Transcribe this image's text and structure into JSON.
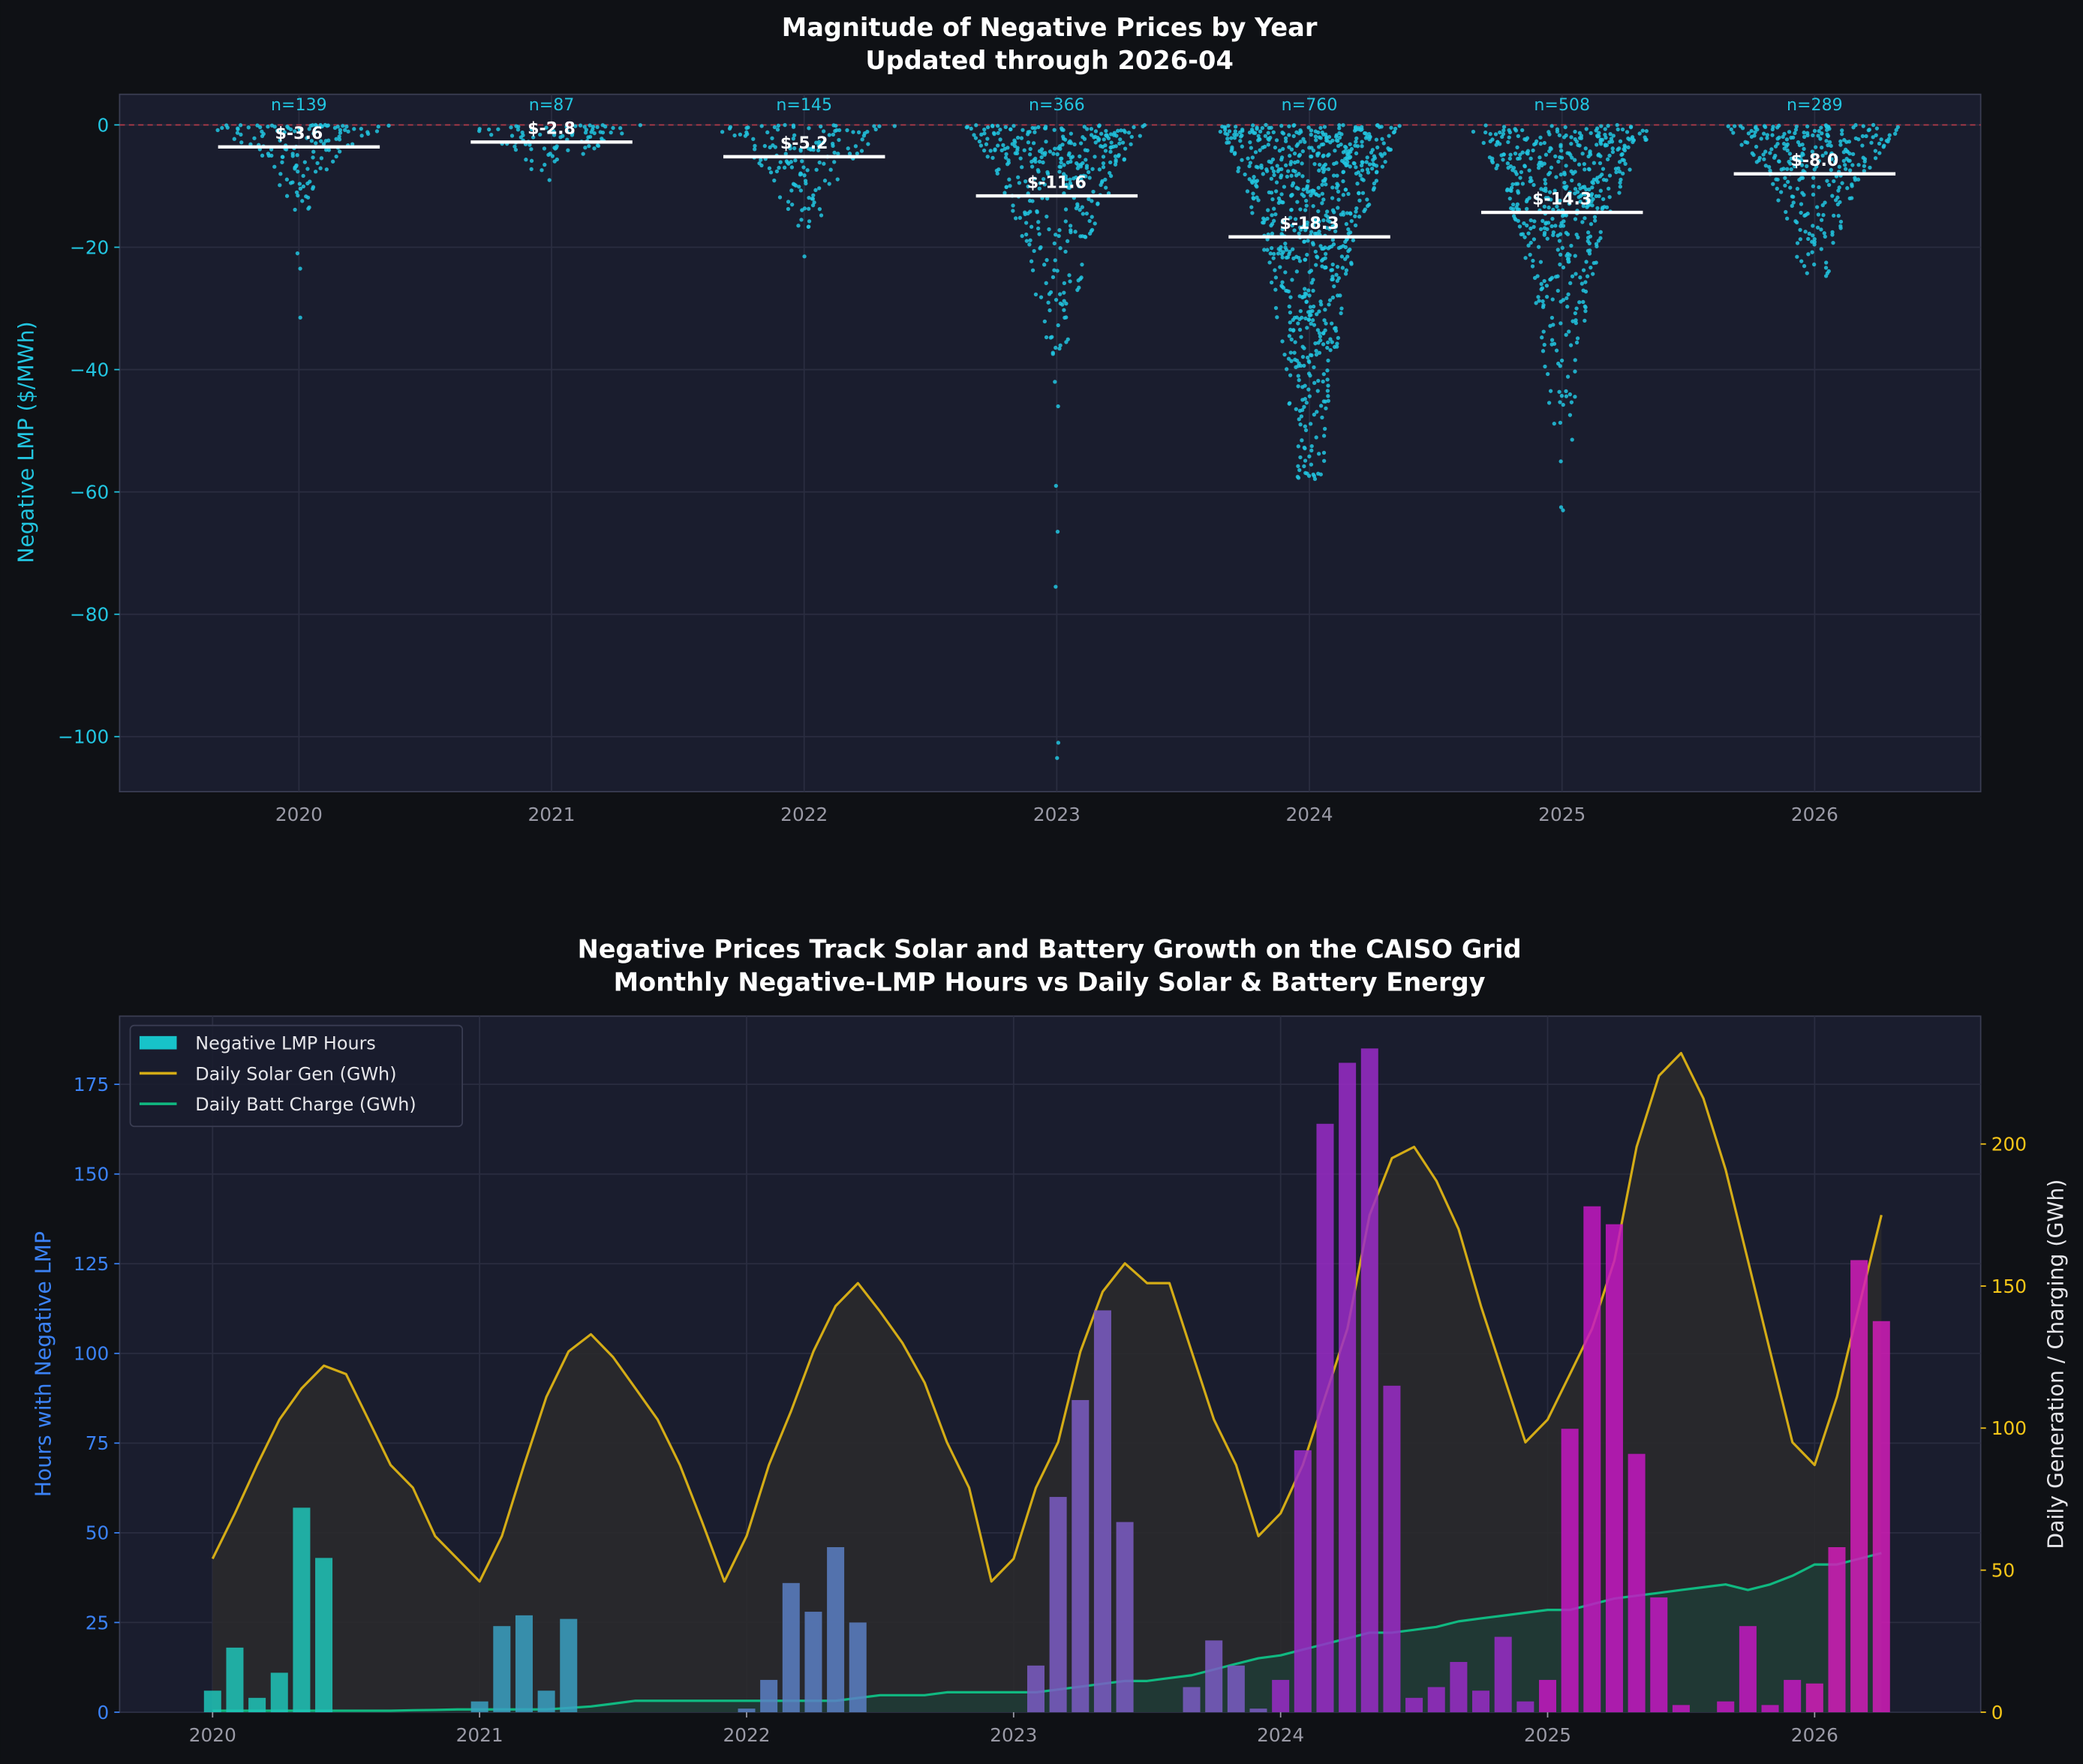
{
  "chart_data": [
    {
      "type": "scatter",
      "title": "Magnitude of Negative Prices by Year",
      "subtitle": "Updated through 2026-04",
      "xlabel": "",
      "ylabel": "Negative LMP ($/MWh)",
      "ylim": [
        -109,
        5
      ],
      "y_ticks": [
        "0",
        "−20",
        "−40",
        "−60",
        "−80",
        "−100"
      ],
      "y_tick_values": [
        0,
        -20,
        -40,
        -60,
        -80,
        -100
      ],
      "categories": [
        "2020",
        "2021",
        "2022",
        "2023",
        "2024",
        "2025",
        "2026"
      ],
      "counts": [
        139,
        87,
        145,
        366,
        760,
        508,
        289
      ],
      "count_labels": [
        "n=139",
        "n=87",
        "n=145",
        "n=366",
        "n=760",
        "n=508",
        "n=289"
      ],
      "means": [
        -3.6,
        -2.8,
        -5.2,
        -11.6,
        -18.3,
        -14.3,
        -8.0
      ],
      "mean_labels": [
        "$-3.6",
        "$-2.8",
        "$-5.2",
        "$-11.6",
        "$-18.3",
        "$-14.3",
        "$-8.0"
      ],
      "typical_min": [
        -14,
        -10.5,
        -17,
        -38,
        -58,
        -52,
        -25
      ],
      "outliers": [
        [
          -21,
          -23.5,
          -31.5
        ],
        [],
        [
          -21.5
        ],
        [
          -42,
          -46,
          -59,
          -66.5,
          -75.5,
          -101,
          -103.5
        ],
        [],
        [
          -55,
          -62.5,
          -63
        ],
        []
      ],
      "reference_line": 0,
      "grid": true,
      "colors": {
        "points": "#22c5e0",
        "mean_line": "#ffffff",
        "zero_line": "#b03a48"
      }
    },
    {
      "type": "bar+line",
      "title": "Negative Prices Track Solar and Battery Growth on the CAISO Grid",
      "subtitle": "Monthly Negative-LMP Hours vs Daily Solar & Battery Energy",
      "xlabel": "",
      "ylabel": "Hours with Negative LMP",
      "ylabel_right": "Daily Generation / Charging (GWh)",
      "x_ticks": [
        "2020",
        "2021",
        "2022",
        "2023",
        "2024",
        "2025",
        "2026"
      ],
      "ylim": [
        0,
        194
      ],
      "ylim_right": [
        0,
        245
      ],
      "y_ticks": [
        "0",
        "25",
        "50",
        "75",
        "100",
        "125",
        "150",
        "175"
      ],
      "y_ticks_right": [
        "0",
        "50",
        "100",
        "150",
        "200"
      ],
      "x_start": "2020-01",
      "x_end": "2026-04",
      "legend_position": "top-left",
      "grid": true,
      "series": [
        {
          "name": "Negative LMP Hours",
          "kind": "bar",
          "axis": "left",
          "values": [
            6,
            18,
            4,
            11,
            57,
            43,
            0,
            0,
            0,
            0,
            0,
            0,
            3,
            24,
            27,
            6,
            26,
            0,
            0,
            0,
            0,
            0,
            0,
            0,
            1,
            9,
            36,
            28,
            46,
            25,
            0,
            0,
            0,
            0,
            0,
            0,
            0,
            13,
            60,
            87,
            112,
            53,
            0,
            0,
            7,
            20,
            13,
            1,
            9,
            73,
            164,
            181,
            185,
            91,
            4,
            7,
            14,
            6,
            21,
            3,
            9,
            79,
            141,
            136,
            72,
            32,
            2,
            0,
            3,
            24,
            2,
            9,
            8,
            46,
            126,
            109
          ]
        },
        {
          "name": "Daily Solar Gen (GWh)",
          "kind": "line",
          "axis": "right",
          "values": [
            54,
            70,
            87,
            103,
            114,
            122,
            119,
            103,
            87,
            79,
            62,
            54,
            46,
            62,
            87,
            111,
            127,
            133,
            125,
            114,
            103,
            87,
            67,
            46,
            62,
            87,
            106,
            127,
            143,
            151,
            141,
            130,
            116,
            95,
            79,
            46,
            54,
            79,
            95,
            127,
            148,
            158,
            151,
            151,
            127,
            103,
            87,
            62,
            70,
            87,
            111,
            135,
            175,
            195,
            199,
            187,
            170,
            143,
            119,
            95,
            103,
            119,
            135,
            159,
            199,
            224,
            232,
            216,
            191,
            159,
            127,
            95,
            87,
            111,
            143,
            175
          ]
        },
        {
          "name": "Daily Batt Charge (GWh)",
          "kind": "line",
          "axis": "right",
          "values": [
            0.5,
            0.5,
            0.5,
            0.5,
            0.5,
            0.5,
            0.5,
            0.5,
            0.5,
            0.7,
            0.8,
            1,
            1,
            1,
            1,
            1,
            1.5,
            2,
            3,
            4,
            4,
            4,
            4,
            4,
            4,
            4,
            4,
            4,
            4,
            5,
            6,
            6,
            6,
            7,
            7,
            7,
            7,
            7,
            8,
            9,
            10,
            11,
            11,
            12,
            13,
            15,
            17,
            19,
            20,
            22,
            24,
            26,
            28,
            28,
            29,
            30,
            32,
            33,
            34,
            35,
            36,
            36,
            38,
            40,
            41,
            42,
            43,
            44,
            45,
            43,
            45,
            48,
            52,
            52,
            54,
            56
          ]
        }
      ],
      "colors": {
        "bar_by_year": [
          "#1fc4b8",
          "#3aa0c2",
          "#5b7fc4",
          "#7b5cc4",
          "#9a2cc8",
          "#c418c2",
          "#d21cb8"
        ],
        "solar": "#d4ac16",
        "solar_fill": "#2a2a2c",
        "battery": "#10b981",
        "battery_fill": "#1f3a35",
        "legend_bar": "#17c3c9",
        "left_axis": "#3b82f6",
        "right_axis_ticks": "#f5c518"
      }
    }
  ]
}
